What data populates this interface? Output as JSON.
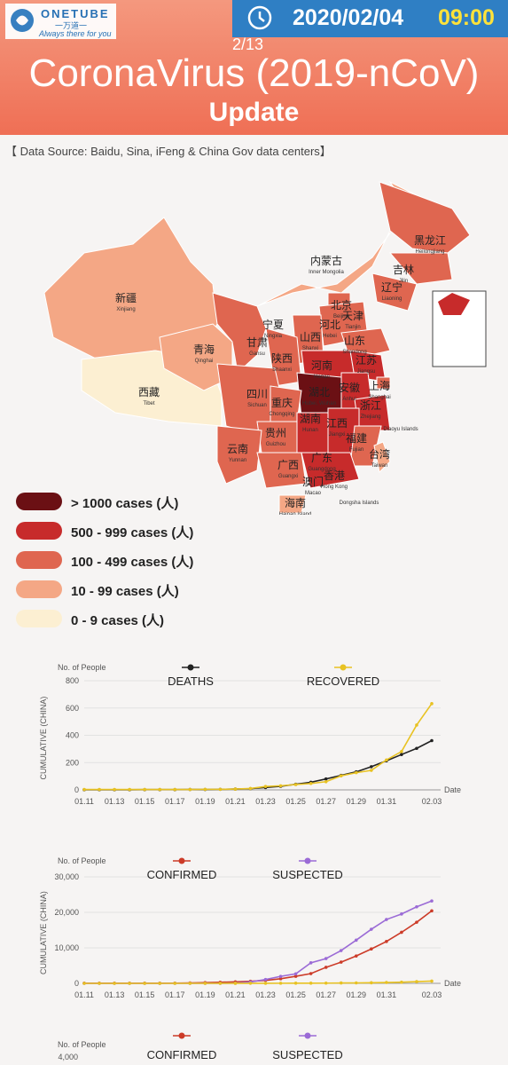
{
  "header": {
    "brand": "ONETUBE",
    "brand_cn": "一万道一",
    "tagline": "Always there for you",
    "date": "2020/02/04",
    "time": "09:00",
    "page": "2/13",
    "title": "CoronaVirus (2019-nCoV)",
    "subtitle": "Update",
    "source": "【 Data Source: Baidu, Sina, iFeng & China Gov data centers】"
  },
  "colors": {
    "header": "#ef6f55",
    "datebox": "#2f7fc4",
    "time": "#ffe23a",
    "over1000": "#6b1014",
    "c500_999": "#c72b2b",
    "c100_499": "#df6650",
    "c10_99": "#f4a785",
    "c0_9": "#fcefd2"
  },
  "map": {
    "labels": [
      {
        "cn": "黑龙江",
        "en": "Heilongjiang"
      },
      {
        "cn": "吉林",
        "en": "Jilin"
      },
      {
        "cn": "辽宁",
        "en": "Liaoning"
      },
      {
        "cn": "内蒙古",
        "en": "Inner Mongolia"
      },
      {
        "cn": "北京",
        "en": "Beijing"
      },
      {
        "cn": "天津",
        "en": "Tianjin"
      },
      {
        "cn": "河北",
        "en": "Hebei"
      },
      {
        "cn": "山西",
        "en": "Shanxi"
      },
      {
        "cn": "山东",
        "en": "Shandong"
      },
      {
        "cn": "宁夏",
        "en": "Ningxia"
      },
      {
        "cn": "甘肃",
        "en": "Gansu"
      },
      {
        "cn": "青海",
        "en": "Qinghai"
      },
      {
        "cn": "新疆",
        "en": "Xinjiang"
      },
      {
        "cn": "西藏",
        "en": "Tibet"
      },
      {
        "cn": "陕西",
        "en": "Shaanxi"
      },
      {
        "cn": "河南",
        "en": "Henan"
      },
      {
        "cn": "江苏",
        "en": "Jiangsu"
      },
      {
        "cn": "安徽",
        "en": "Anhui"
      },
      {
        "cn": "上海",
        "en": "Shanghai"
      },
      {
        "cn": "湖北",
        "en": "Hubei, Wuhan"
      },
      {
        "cn": "四川",
        "en": "Sichuan"
      },
      {
        "cn": "重庆",
        "en": "Chongqing"
      },
      {
        "cn": "浙江",
        "en": "Zhejiang"
      },
      {
        "cn": "湖南",
        "en": "Hunan"
      },
      {
        "cn": "江西",
        "en": "Jiangxi"
      },
      {
        "cn": "贵州",
        "en": "Guizhou"
      },
      {
        "cn": "福建",
        "en": "Fujian"
      },
      {
        "cn": "云南",
        "en": "Yunnan"
      },
      {
        "cn": "广西",
        "en": "Guangxi"
      },
      {
        "cn": "广东",
        "en": "Guangdong"
      },
      {
        "cn": "台湾",
        "en": "Taiwan"
      },
      {
        "cn": "香港",
        "en": "Hong Kong"
      },
      {
        "cn": "澳门",
        "en": "Macao"
      },
      {
        "cn": "海南",
        "en": "Hainan Island"
      },
      {
        "cn": "",
        "en": "Diaoyu Islands"
      },
      {
        "cn": "",
        "en": "Dongsha Islands"
      }
    ]
  },
  "legend": [
    {
      "label": "> 1000 cases (人)",
      "color": "#6b1014"
    },
    {
      "label": "500 - 999 cases (人)",
      "color": "#c72b2b"
    },
    {
      "label": "100 - 499 cases (人)",
      "color": "#df6650"
    },
    {
      "label": "10 - 99 cases (人)",
      "color": "#f4a785"
    },
    {
      "label": "0 - 9 cases (人)",
      "color": "#fcefd2"
    }
  ],
  "chart_data": [
    {
      "type": "line",
      "ylabel_top": "No. of People",
      "ylabel": "CUMULATIVE (CHINA)",
      "xlabel": "Date",
      "ylim": [
        0,
        800
      ],
      "yticks": [
        "0",
        "200",
        "400",
        "600",
        "800"
      ],
      "x": [
        "01.11",
        "01.12",
        "01.13",
        "01.14",
        "01.15",
        "01.16",
        "01.17",
        "01.18",
        "01.19",
        "01.20",
        "01.21",
        "01.22",
        "01.23",
        "01.24",
        "01.25",
        "01.26",
        "01.27",
        "01.28",
        "01.29",
        "01.30",
        "01.31",
        "02.01",
        "02.02",
        "02.03"
      ],
      "xticks": [
        "01.11",
        "01.13",
        "01.15",
        "01.17",
        "01.19",
        "01.21",
        "01.23",
        "01.25",
        "01.27",
        "01.29",
        "01.31",
        "02.03"
      ],
      "series": [
        {
          "name": "DEATHS",
          "color": "#222222",
          "values": [
            1,
            1,
            1,
            1,
            2,
            2,
            2,
            3,
            3,
            4,
            6,
            9,
            17,
            26,
            41,
            56,
            80,
            106,
            132,
            170,
            213,
            259,
            304,
            361
          ]
        },
        {
          "name": "RECOVERED",
          "color": "#e8c222",
          "values": [
            3,
            3,
            3,
            3,
            3,
            3,
            3,
            3,
            4,
            4,
            6,
            10,
            25,
            30,
            39,
            47,
            60,
            103,
            126,
            143,
            219,
            281,
            475,
            632
          ]
        }
      ]
    },
    {
      "type": "line",
      "ylabel_top": "No. of People",
      "ylabel": "CUMULATIVE (CHINA)",
      "xlabel": "Date",
      "ylim": [
        0,
        30000
      ],
      "yticks": [
        "0",
        "10,000",
        "20,000",
        "30,000"
      ],
      "x": [
        "01.11",
        "01.12",
        "01.13",
        "01.14",
        "01.15",
        "01.16",
        "01.17",
        "01.18",
        "01.19",
        "01.20",
        "01.21",
        "01.22",
        "01.23",
        "01.24",
        "01.25",
        "01.26",
        "01.27",
        "01.28",
        "01.29",
        "01.30",
        "01.31",
        "02.01",
        "02.02",
        "02.03"
      ],
      "xticks": [
        "01.11",
        "01.13",
        "01.15",
        "01.17",
        "01.19",
        "01.21",
        "01.23",
        "01.25",
        "01.27",
        "01.29",
        "01.31",
        "02.03"
      ],
      "series": [
        {
          "name": "CONFIRMED",
          "color": "#cc3b28",
          "values": [
            41,
            41,
            41,
            41,
            41,
            45,
            62,
            121,
            198,
            291,
            440,
            571,
            830,
            1287,
            1975,
            2744,
            4515,
            5974,
            7711,
            9692,
            11791,
            14380,
            17205,
            20438
          ]
        },
        {
          "name": "SUSPECTED",
          "color": "#9b6bd6",
          "values": [
            0,
            0,
            0,
            0,
            0,
            0,
            0,
            0,
            0,
            0,
            37,
            393,
            1072,
            1965,
            2684,
            5794,
            6973,
            9239,
            12167,
            15238,
            17988,
            19544,
            21558,
            23214
          ]
        },
        {
          "name": "",
          "color": "#e8c222",
          "values": [
            0,
            0,
            0,
            0,
            0,
            0,
            0,
            0,
            0,
            0,
            9,
            17,
            25,
            34,
            49,
            51,
            60,
            103,
            124,
            171,
            243,
            328,
            475,
            632
          ]
        }
      ]
    },
    {
      "type": "line",
      "ylabel_top": "No. of People",
      "yticks": [
        "4,000"
      ],
      "series": [
        {
          "name": "CONFIRMED",
          "color": "#cc3b28",
          "values": []
        },
        {
          "name": "SUSPECTED",
          "color": "#9b6bd6",
          "values": []
        }
      ]
    }
  ]
}
